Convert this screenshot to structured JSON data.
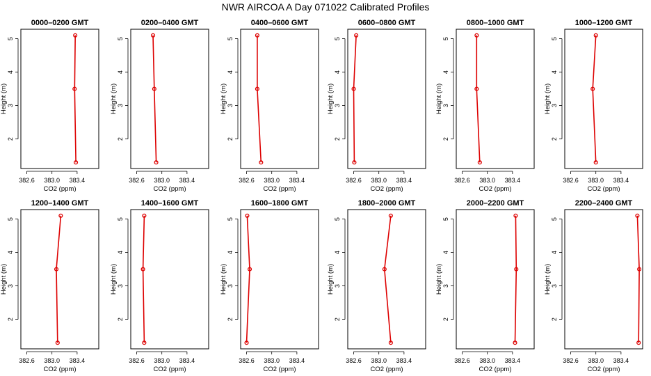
{
  "figure": {
    "title": "NWR AIRCOA A  Day 071022  Calibrated Profiles"
  },
  "style": {
    "line_color": "#dd0000",
    "axis_color": "#000000",
    "background": "#ffffff"
  },
  "chart_data": [
    {
      "type": "line",
      "title": "0000–0200 GMT",
      "xlabel": "CO2 (ppm)",
      "ylabel": "Height (m)",
      "xlim": [
        382.55,
        383.7
      ],
      "ylim": [
        1.2,
        5.2
      ],
      "x_ticks": [
        382.6,
        383.0,
        383.4
      ],
      "y_ticks": [
        2,
        3,
        4,
        5
      ],
      "x_tick_labels": [
        "382.6",
        "383.0",
        "383.4"
      ],
      "y_tick_labels": [
        "2",
        "3",
        "4",
        "5"
      ],
      "grid": false,
      "series": [
        {
          "x": [
            383.37,
            383.36,
            383.38
          ],
          "y": [
            5.1,
            3.5,
            1.3
          ]
        }
      ]
    },
    {
      "type": "line",
      "title": "0200–0400 GMT",
      "xlabel": "CO2 (ppm)",
      "ylabel": "Height (m)",
      "xlim": [
        382.55,
        383.7
      ],
      "ylim": [
        1.2,
        5.2
      ],
      "x_ticks": [
        382.6,
        383.0,
        383.4
      ],
      "y_ticks": [
        2,
        3,
        4,
        5
      ],
      "x_tick_labels": [
        "382.6",
        "383.0",
        "383.4"
      ],
      "y_tick_labels": [
        "2",
        "3",
        "4",
        "5"
      ],
      "grid": false,
      "series": [
        {
          "x": [
            382.86,
            382.88,
            382.91
          ],
          "y": [
            5.1,
            3.5,
            1.3
          ]
        }
      ]
    },
    {
      "type": "line",
      "title": "0400–0600 GMT",
      "xlabel": "CO2 (ppm)",
      "ylabel": "Height (m)",
      "xlim": [
        382.55,
        383.7
      ],
      "ylim": [
        1.2,
        5.2
      ],
      "x_ticks": [
        382.6,
        383.0,
        383.4
      ],
      "y_ticks": [
        2,
        3,
        4,
        5
      ],
      "x_tick_labels": [
        "382.6",
        "383.0",
        "383.4"
      ],
      "y_tick_labels": [
        "2",
        "3",
        "4",
        "5"
      ],
      "grid": false,
      "series": [
        {
          "x": [
            382.77,
            382.77,
            382.83
          ],
          "y": [
            5.1,
            3.5,
            1.3
          ]
        }
      ]
    },
    {
      "type": "line",
      "title": "0600–0800 GMT",
      "xlabel": "CO2 (ppm)",
      "ylabel": "Height (m)",
      "xlim": [
        382.55,
        383.7
      ],
      "ylim": [
        1.2,
        5.2
      ],
      "x_ticks": [
        382.6,
        383.0,
        383.4
      ],
      "y_ticks": [
        2,
        3,
        4,
        5
      ],
      "x_tick_labels": [
        "382.6",
        "383.0",
        "383.4"
      ],
      "y_tick_labels": [
        "2",
        "3",
        "4",
        "5"
      ],
      "grid": false,
      "series": [
        {
          "x": [
            382.64,
            382.6,
            382.61
          ],
          "y": [
            5.1,
            3.5,
            1.3
          ]
        }
      ]
    },
    {
      "type": "line",
      "title": "0800–1000 GMT",
      "xlabel": "CO2 (ppm)",
      "ylabel": "Height (m)",
      "xlim": [
        382.55,
        383.7
      ],
      "ylim": [
        1.2,
        5.2
      ],
      "x_ticks": [
        382.6,
        383.0,
        383.4
      ],
      "y_ticks": [
        2,
        3,
        4,
        5
      ],
      "x_tick_labels": [
        "382.6",
        "383.0",
        "383.4"
      ],
      "y_tick_labels": [
        "2",
        "3",
        "4",
        "5"
      ],
      "grid": false,
      "series": [
        {
          "x": [
            382.83,
            382.83,
            382.88
          ],
          "y": [
            5.1,
            3.5,
            1.3
          ]
        }
      ]
    },
    {
      "type": "line",
      "title": "1000–1200 GMT",
      "xlabel": "CO2 (ppm)",
      "ylabel": "Height (m)",
      "xlim": [
        382.55,
        383.7
      ],
      "ylim": [
        1.2,
        5.2
      ],
      "x_ticks": [
        382.6,
        383.0,
        383.4
      ],
      "y_ticks": [
        2,
        3,
        4,
        5
      ],
      "x_tick_labels": [
        "382.6",
        "383.0",
        "383.4"
      ],
      "y_tick_labels": [
        "2",
        "3",
        "4",
        "5"
      ],
      "grid": false,
      "series": [
        {
          "x": [
            383.0,
            382.95,
            383.0
          ],
          "y": [
            5.1,
            3.5,
            1.3
          ]
        }
      ]
    },
    {
      "type": "line",
      "title": "1200–1400 GMT",
      "xlabel": "CO2 (ppm)",
      "ylabel": "Height (m)",
      "xlim": [
        382.55,
        383.7
      ],
      "ylim": [
        1.2,
        5.2
      ],
      "x_ticks": [
        382.6,
        383.0,
        383.4
      ],
      "y_ticks": [
        2,
        3,
        4,
        5
      ],
      "x_tick_labels": [
        "382.6",
        "383.0",
        "383.4"
      ],
      "y_tick_labels": [
        "2",
        "3",
        "4",
        "5"
      ],
      "grid": false,
      "series": [
        {
          "x": [
            383.14,
            383.07,
            383.09
          ],
          "y": [
            5.1,
            3.5,
            1.3
          ]
        }
      ]
    },
    {
      "type": "line",
      "title": "1400–1600 GMT",
      "xlabel": "CO2 (ppm)",
      "ylabel": "Height (m)",
      "xlim": [
        382.55,
        383.7
      ],
      "ylim": [
        1.2,
        5.2
      ],
      "x_ticks": [
        382.6,
        383.0,
        383.4
      ],
      "y_ticks": [
        2,
        3,
        4,
        5
      ],
      "x_tick_labels": [
        "382.6",
        "383.0",
        "383.4"
      ],
      "y_tick_labels": [
        "2",
        "3",
        "4",
        "5"
      ],
      "grid": false,
      "series": [
        {
          "x": [
            382.72,
            382.7,
            382.72
          ],
          "y": [
            5.1,
            3.5,
            1.3
          ]
        }
      ]
    },
    {
      "type": "line",
      "title": "1600–1800 GMT",
      "xlabel": "CO2 (ppm)",
      "ylabel": "Height (m)",
      "xlim": [
        382.55,
        383.7
      ],
      "ylim": [
        1.2,
        5.2
      ],
      "x_ticks": [
        382.6,
        383.0,
        383.4
      ],
      "y_ticks": [
        2,
        3,
        4,
        5
      ],
      "x_tick_labels": [
        "382.6",
        "383.0",
        "383.4"
      ],
      "y_tick_labels": [
        "2",
        "3",
        "4",
        "5"
      ],
      "grid": false,
      "series": [
        {
          "x": [
            382.61,
            382.65,
            382.6
          ],
          "y": [
            5.1,
            3.5,
            1.3
          ]
        }
      ]
    },
    {
      "type": "line",
      "title": "1800–2000 GMT",
      "xlabel": "CO2 (ppm)",
      "ylabel": "Height (m)",
      "xlim": [
        382.55,
        383.7
      ],
      "ylim": [
        1.2,
        5.2
      ],
      "x_ticks": [
        382.6,
        383.0,
        383.4
      ],
      "y_ticks": [
        2,
        3,
        4,
        5
      ],
      "x_tick_labels": [
        "382.6",
        "383.0",
        "383.4"
      ],
      "y_tick_labels": [
        "2",
        "3",
        "4",
        "5"
      ],
      "grid": false,
      "series": [
        {
          "x": [
            383.19,
            383.09,
            383.19
          ],
          "y": [
            5.1,
            3.5,
            1.3
          ]
        }
      ]
    },
    {
      "type": "line",
      "title": "2000–2200 GMT",
      "xlabel": "CO2 (ppm)",
      "ylabel": "Height (m)",
      "xlim": [
        382.55,
        383.7
      ],
      "ylim": [
        1.2,
        5.2
      ],
      "x_ticks": [
        382.6,
        383.0,
        383.4
      ],
      "y_ticks": [
        2,
        3,
        4,
        5
      ],
      "x_tick_labels": [
        "382.6",
        "383.0",
        "383.4"
      ],
      "y_tick_labels": [
        "2",
        "3",
        "4",
        "5"
      ],
      "grid": false,
      "series": [
        {
          "x": [
            383.45,
            383.46,
            383.44
          ],
          "y": [
            5.1,
            3.5,
            1.3
          ]
        }
      ]
    },
    {
      "type": "line",
      "title": "2200–2400 GMT",
      "xlabel": "CO2 (ppm)",
      "ylabel": "Height (m)",
      "xlim": [
        382.55,
        383.7
      ],
      "ylim": [
        1.2,
        5.2
      ],
      "x_ticks": [
        382.6,
        383.0,
        383.4
      ],
      "y_ticks": [
        2,
        3,
        4,
        5
      ],
      "x_tick_labels": [
        "382.6",
        "383.0",
        "383.4"
      ],
      "y_tick_labels": [
        "2",
        "3",
        "4",
        "5"
      ],
      "grid": false,
      "series": [
        {
          "x": [
            383.66,
            383.69,
            383.68
          ],
          "y": [
            5.1,
            3.5,
            1.3
          ]
        }
      ]
    }
  ]
}
